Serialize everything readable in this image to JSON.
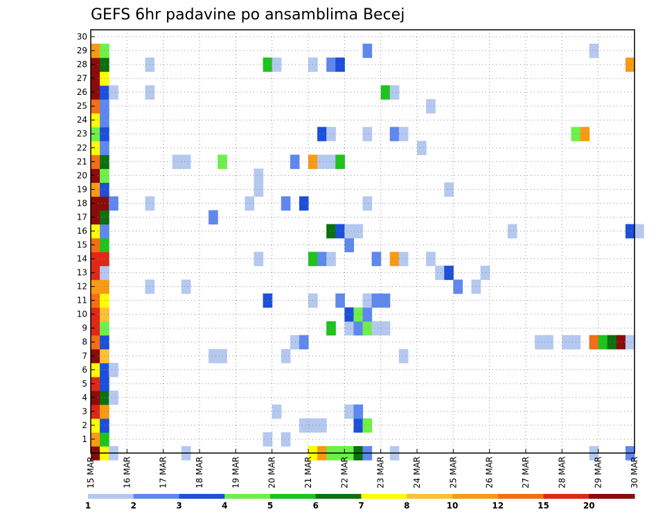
{
  "chart_data": {
    "type": "heatmap",
    "title": "GEFS 6hr padavine po ansamblima Becej",
    "x_ticks": [
      "15 MAR",
      "16 MAR",
      "17 MAR",
      "18 MAR",
      "19 MAR",
      "20 MAR",
      "21 MAR",
      "22 MAR",
      "23 MAR",
      "24 MAR",
      "25 MAR",
      "26 MAR",
      "27 MAR",
      "28 MAR",
      "29 MAR",
      "30 MAR"
    ],
    "y_ticks": [
      "1",
      "2",
      "3",
      "4",
      "5",
      "6",
      "7",
      "8",
      "9",
      "10",
      "11",
      "12",
      "13",
      "14",
      "15",
      "16",
      "17",
      "18",
      "19",
      "20",
      "21",
      "22",
      "23",
      "24",
      "25",
      "26",
      "27",
      "28",
      "29",
      "30"
    ],
    "x_start": "15 MAR 00Z",
    "time_step_hours": 6,
    "grid": "dotted",
    "colorbar": {
      "labels": [
        "1",
        "2",
        "3",
        "4",
        "5",
        "6",
        "7",
        "8",
        "10",
        "12",
        "15",
        "20"
      ],
      "colors": [
        "#b4c8f0",
        "#5f88ee",
        "#1d4fdb",
        "#6ef04b",
        "#1ec31d",
        "#0c700f",
        "#fcfc04",
        "#fcc037",
        "#f79b14",
        "#f36e14",
        "#e02817",
        "#8b0b0a"
      ]
    },
    "cells": [
      {
        "member": 0,
        "step": 0,
        "bin": 11
      },
      {
        "member": 0,
        "step": 1,
        "bin": 6
      },
      {
        "member": 0,
        "step": 2,
        "bin": 0
      },
      {
        "member": 0,
        "step": 10,
        "bin": 0
      },
      {
        "member": 0,
        "step": 24,
        "bin": 6
      },
      {
        "member": 0,
        "step": 25,
        "bin": 8
      },
      {
        "member": 0,
        "step": 26,
        "bin": 3
      },
      {
        "member": 0,
        "step": 27,
        "bin": 3
      },
      {
        "member": 0,
        "step": 28,
        "bin": 3
      },
      {
        "member": 0,
        "step": 29,
        "bin": 5
      },
      {
        "member": 0,
        "step": 30,
        "bin": 1
      },
      {
        "member": 0,
        "step": 33,
        "bin": 0
      },
      {
        "member": 0,
        "step": 55,
        "bin": 0
      },
      {
        "member": 0,
        "step": 59,
        "bin": 1
      },
      {
        "member": 1,
        "step": 0,
        "bin": 8
      },
      {
        "member": 1,
        "step": 1,
        "bin": 4
      },
      {
        "member": 1,
        "step": 19,
        "bin": 0
      },
      {
        "member": 1,
        "step": 21,
        "bin": 0
      },
      {
        "member": 2,
        "step": 0,
        "bin": 6
      },
      {
        "member": 2,
        "step": 1,
        "bin": 2
      },
      {
        "member": 2,
        "step": 23,
        "bin": 0
      },
      {
        "member": 2,
        "step": 24,
        "bin": 0
      },
      {
        "member": 2,
        "step": 25,
        "bin": 0
      },
      {
        "member": 2,
        "step": 29,
        "bin": 2
      },
      {
        "member": 2,
        "step": 30,
        "bin": 3
      },
      {
        "member": 3,
        "step": 0,
        "bin": 10
      },
      {
        "member": 3,
        "step": 1,
        "bin": 8
      },
      {
        "member": 3,
        "step": 20,
        "bin": 0
      },
      {
        "member": 3,
        "step": 28,
        "bin": 0
      },
      {
        "member": 3,
        "step": 29,
        "bin": 1
      },
      {
        "member": 4,
        "step": 0,
        "bin": 11
      },
      {
        "member": 4,
        "step": 1,
        "bin": 5
      },
      {
        "member": 4,
        "step": 2,
        "bin": 0
      },
      {
        "member": 5,
        "step": 0,
        "bin": 10
      },
      {
        "member": 5,
        "step": 1,
        "bin": 2
      },
      {
        "member": 6,
        "step": 0,
        "bin": 6
      },
      {
        "member": 6,
        "step": 1,
        "bin": 2
      },
      {
        "member": 6,
        "step": 2,
        "bin": 0
      },
      {
        "member": 7,
        "step": 0,
        "bin": 11
      },
      {
        "member": 7,
        "step": 1,
        "bin": 7
      },
      {
        "member": 7,
        "step": 13,
        "bin": 0
      },
      {
        "member": 7,
        "step": 14,
        "bin": 0
      },
      {
        "member": 7,
        "step": 21,
        "bin": 0
      },
      {
        "member": 7,
        "step": 34,
        "bin": 0
      },
      {
        "member": 8,
        "step": 0,
        "bin": 9
      },
      {
        "member": 8,
        "step": 1,
        "bin": 2
      },
      {
        "member": 8,
        "step": 22,
        "bin": 0
      },
      {
        "member": 8,
        "step": 23,
        "bin": 1
      },
      {
        "member": 8,
        "step": 49,
        "bin": 0
      },
      {
        "member": 8,
        "step": 50,
        "bin": 0
      },
      {
        "member": 8,
        "step": 52,
        "bin": 0
      },
      {
        "member": 8,
        "step": 53,
        "bin": 0
      },
      {
        "member": 8,
        "step": 55,
        "bin": 9
      },
      {
        "member": 8,
        "step": 56,
        "bin": 4
      },
      {
        "member": 8,
        "step": 57,
        "bin": 5
      },
      {
        "member": 8,
        "step": 58,
        "bin": 11
      },
      {
        "member": 8,
        "step": 59,
        "bin": 0
      },
      {
        "member": 9,
        "step": 0,
        "bin": 10
      },
      {
        "member": 9,
        "step": 1,
        "bin": 3
      },
      {
        "member": 9,
        "step": 26,
        "bin": 4
      },
      {
        "member": 9,
        "step": 28,
        "bin": 0
      },
      {
        "member": 9,
        "step": 29,
        "bin": 1
      },
      {
        "member": 9,
        "step": 30,
        "bin": 3
      },
      {
        "member": 9,
        "step": 31,
        "bin": 0
      },
      {
        "member": 9,
        "step": 32,
        "bin": 0
      },
      {
        "member": 10,
        "step": 0,
        "bin": 10
      },
      {
        "member": 10,
        "step": 1,
        "bin": 7
      },
      {
        "member": 10,
        "step": 28,
        "bin": 2
      },
      {
        "member": 10,
        "step": 29,
        "bin": 3
      },
      {
        "member": 10,
        "step": 30,
        "bin": 1
      },
      {
        "member": 11,
        "step": 0,
        "bin": 9
      },
      {
        "member": 11,
        "step": 1,
        "bin": 6
      },
      {
        "member": 11,
        "step": 19,
        "bin": 2
      },
      {
        "member": 11,
        "step": 24,
        "bin": 0
      },
      {
        "member": 11,
        "step": 27,
        "bin": 1
      },
      {
        "member": 11,
        "step": 30,
        "bin": 0
      },
      {
        "member": 11,
        "step": 31,
        "bin": 1
      },
      {
        "member": 11,
        "step": 32,
        "bin": 1
      },
      {
        "member": 12,
        "step": 0,
        "bin": 8
      },
      {
        "member": 12,
        "step": 1,
        "bin": 8
      },
      {
        "member": 12,
        "step": 6,
        "bin": 0
      },
      {
        "member": 12,
        "step": 10,
        "bin": 0
      },
      {
        "member": 12,
        "step": 40,
        "bin": 1
      },
      {
        "member": 12,
        "step": 42,
        "bin": 0
      },
      {
        "member": 13,
        "step": 0,
        "bin": 10
      },
      {
        "member": 13,
        "step": 1,
        "bin": 0
      },
      {
        "member": 13,
        "step": 38,
        "bin": 0
      },
      {
        "member": 13,
        "step": 39,
        "bin": 2
      },
      {
        "member": 13,
        "step": 43,
        "bin": 0
      },
      {
        "member": 14,
        "step": 0,
        "bin": 10
      },
      {
        "member": 14,
        "step": 1,
        "bin": 10
      },
      {
        "member": 14,
        "step": 18,
        "bin": 0
      },
      {
        "member": 14,
        "step": 24,
        "bin": 4
      },
      {
        "member": 14,
        "step": 25,
        "bin": 1
      },
      {
        "member": 14,
        "step": 26,
        "bin": 0
      },
      {
        "member": 14,
        "step": 31,
        "bin": 1
      },
      {
        "member": 14,
        "step": 33,
        "bin": 8
      },
      {
        "member": 14,
        "step": 34,
        "bin": 0
      },
      {
        "member": 14,
        "step": 37,
        "bin": 0
      },
      {
        "member": 15,
        "step": 0,
        "bin": 9
      },
      {
        "member": 15,
        "step": 1,
        "bin": 4
      },
      {
        "member": 15,
        "step": 28,
        "bin": 1
      },
      {
        "member": 16,
        "step": 0,
        "bin": 6
      },
      {
        "member": 16,
        "step": 1,
        "bin": 1
      },
      {
        "member": 16,
        "step": 26,
        "bin": 5
      },
      {
        "member": 16,
        "step": 27,
        "bin": 2
      },
      {
        "member": 16,
        "step": 28,
        "bin": 0
      },
      {
        "member": 16,
        "step": 29,
        "bin": 0
      },
      {
        "member": 16,
        "step": 46,
        "bin": 0
      },
      {
        "member": 16,
        "step": 59,
        "bin": 2
      },
      {
        "member": 16,
        "step": 60,
        "bin": 0
      },
      {
        "member": 17,
        "step": 0,
        "bin": 11
      },
      {
        "member": 17,
        "step": 1,
        "bin": 5
      },
      {
        "member": 17,
        "step": 13,
        "bin": 1
      },
      {
        "member": 18,
        "step": 0,
        "bin": 11
      },
      {
        "member": 18,
        "step": 1,
        "bin": 11
      },
      {
        "member": 18,
        "step": 2,
        "bin": 1
      },
      {
        "member": 18,
        "step": 6,
        "bin": 0
      },
      {
        "member": 18,
        "step": 17,
        "bin": 0
      },
      {
        "member": 18,
        "step": 21,
        "bin": 1
      },
      {
        "member": 18,
        "step": 23,
        "bin": 2
      },
      {
        "member": 18,
        "step": 30,
        "bin": 0
      },
      {
        "member": 19,
        "step": 0,
        "bin": 8
      },
      {
        "member": 19,
        "step": 1,
        "bin": 2
      },
      {
        "member": 19,
        "step": 18,
        "bin": 0
      },
      {
        "member": 19,
        "step": 39,
        "bin": 0
      },
      {
        "member": 20,
        "step": 0,
        "bin": 11
      },
      {
        "member": 20,
        "step": 1,
        "bin": 3
      },
      {
        "member": 20,
        "step": 18,
        "bin": 0
      },
      {
        "member": 21,
        "step": 0,
        "bin": 9
      },
      {
        "member": 21,
        "step": 1,
        "bin": 5
      },
      {
        "member": 21,
        "step": 9,
        "bin": 0
      },
      {
        "member": 21,
        "step": 10,
        "bin": 0
      },
      {
        "member": 21,
        "step": 14,
        "bin": 3
      },
      {
        "member": 21,
        "step": 22,
        "bin": 1
      },
      {
        "member": 21,
        "step": 24,
        "bin": 8
      },
      {
        "member": 21,
        "step": 25,
        "bin": 0
      },
      {
        "member": 21,
        "step": 26,
        "bin": 0
      },
      {
        "member": 21,
        "step": 27,
        "bin": 4
      },
      {
        "member": 22,
        "step": 0,
        "bin": 6
      },
      {
        "member": 22,
        "step": 1,
        "bin": 1
      },
      {
        "member": 22,
        "step": 36,
        "bin": 0
      },
      {
        "member": 23,
        "step": 0,
        "bin": 3
      },
      {
        "member": 23,
        "step": 1,
        "bin": 2
      },
      {
        "member": 23,
        "step": 25,
        "bin": 2
      },
      {
        "member": 23,
        "step": 26,
        "bin": 0
      },
      {
        "member": 23,
        "step": 30,
        "bin": 0
      },
      {
        "member": 23,
        "step": 33,
        "bin": 1
      },
      {
        "member": 23,
        "step": 34,
        "bin": 0
      },
      {
        "member": 23,
        "step": 53,
        "bin": 3
      },
      {
        "member": 23,
        "step": 54,
        "bin": 8
      },
      {
        "member": 24,
        "step": 0,
        "bin": 6
      },
      {
        "member": 24,
        "step": 1,
        "bin": 1
      },
      {
        "member": 25,
        "step": 0,
        "bin": 9
      },
      {
        "member": 25,
        "step": 1,
        "bin": 1
      },
      {
        "member": 25,
        "step": 37,
        "bin": 0
      },
      {
        "member": 26,
        "step": 0,
        "bin": 11
      },
      {
        "member": 26,
        "step": 1,
        "bin": 2
      },
      {
        "member": 26,
        "step": 2,
        "bin": 0
      },
      {
        "member": 26,
        "step": 6,
        "bin": 0
      },
      {
        "member": 26,
        "step": 32,
        "bin": 4
      },
      {
        "member": 26,
        "step": 33,
        "bin": 0
      },
      {
        "member": 27,
        "step": 0,
        "bin": 11
      },
      {
        "member": 27,
        "step": 1,
        "bin": 6
      },
      {
        "member": 28,
        "step": 0,
        "bin": 11
      },
      {
        "member": 28,
        "step": 1,
        "bin": 5
      },
      {
        "member": 28,
        "step": 6,
        "bin": 0
      },
      {
        "member": 28,
        "step": 19,
        "bin": 4
      },
      {
        "member": 28,
        "step": 20,
        "bin": 0
      },
      {
        "member": 28,
        "step": 24,
        "bin": 0
      },
      {
        "member": 28,
        "step": 26,
        "bin": 1
      },
      {
        "member": 28,
        "step": 27,
        "bin": 2
      },
      {
        "member": 28,
        "step": 59,
        "bin": 8
      },
      {
        "member": 29,
        "step": 0,
        "bin": 8
      },
      {
        "member": 29,
        "step": 1,
        "bin": 3
      },
      {
        "member": 29,
        "step": 30,
        "bin": 1
      },
      {
        "member": 29,
        "step": 55,
        "bin": 0
      }
    ]
  }
}
